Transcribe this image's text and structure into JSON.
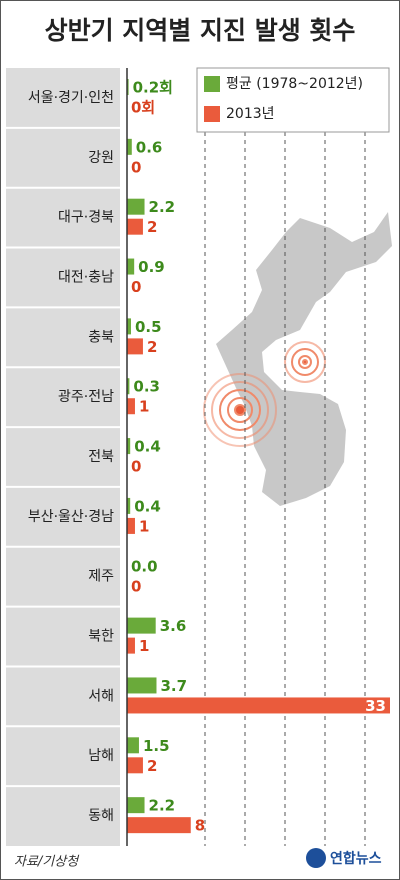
{
  "chart_data": {
    "type": "bar",
    "orientation": "horizontal",
    "title": "상반기 지역별 지진 발생 횟수",
    "categories": [
      "서울·경기·인천",
      "강원",
      "대구·경북",
      "대전·충남",
      "충북",
      "광주·전남",
      "전북",
      "부산·울산·경남",
      "제주",
      "북한",
      "서해",
      "남해",
      "동해"
    ],
    "series": [
      {
        "name": "평균 (1978~2012년)",
        "color": "#6aaa3a",
        "label_color": "#3d8a1c",
        "values": [
          0.2,
          0.6,
          2.2,
          0.9,
          0.5,
          0.3,
          0.4,
          0.4,
          0.0,
          3.6,
          3.7,
          1.5,
          2.2
        ],
        "value_labels": [
          "0.2회",
          "0.6",
          "2.2",
          "0.9",
          "0.5",
          "0.3",
          "0.4",
          "0.4",
          "0.0",
          "3.6",
          "3.7",
          "1.5",
          "2.2"
        ]
      },
      {
        "name": "2013년",
        "color": "#ea5b3c",
        "label_color": "#d8401e",
        "values": [
          0,
          0,
          2,
          0,
          2,
          1,
          0,
          1,
          0,
          1,
          33,
          2,
          8
        ],
        "value_labels": [
          "0회",
          "0",
          "2",
          "0",
          "2",
          "1",
          "0",
          "1",
          "0",
          "1",
          "33",
          "2",
          "8"
        ]
      }
    ],
    "xlim": [
      0,
      33
    ],
    "source": "자료/기상청",
    "publisher": "연합뉴스"
  }
}
